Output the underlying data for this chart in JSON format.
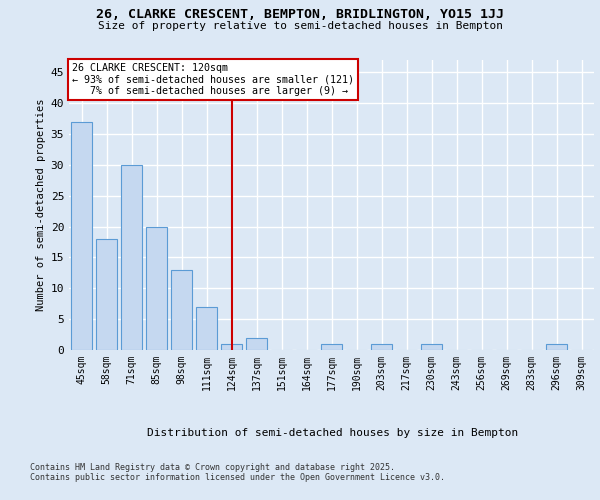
{
  "title1": "26, CLARKE CRESCENT, BEMPTON, BRIDLINGTON, YO15 1JJ",
  "title2": "Size of property relative to semi-detached houses in Bempton",
  "xlabel": "Distribution of semi-detached houses by size in Bempton",
  "ylabel": "Number of semi-detached properties",
  "categories": [
    "45sqm",
    "58sqm",
    "71sqm",
    "85sqm",
    "98sqm",
    "111sqm",
    "124sqm",
    "137sqm",
    "151sqm",
    "164sqm",
    "177sqm",
    "190sqm",
    "203sqm",
    "217sqm",
    "230sqm",
    "243sqm",
    "256sqm",
    "269sqm",
    "283sqm",
    "296sqm",
    "309sqm"
  ],
  "values": [
    37,
    18,
    30,
    20,
    13,
    7,
    1,
    2,
    0,
    0,
    1,
    0,
    1,
    0,
    1,
    0,
    0,
    0,
    0,
    1,
    0
  ],
  "bar_color": "#c5d8f0",
  "bar_edge_color": "#5b9bd5",
  "highlight_index": 6,
  "highlight_line_color": "#cc0000",
  "ylim": [
    0,
    47
  ],
  "yticks": [
    0,
    5,
    10,
    15,
    20,
    25,
    30,
    35,
    40,
    45
  ],
  "annotation_text": "26 CLARKE CRESCENT: 120sqm\n← 93% of semi-detached houses are smaller (121)\n   7% of semi-detached houses are larger (9) →",
  "annotation_box_color": "#ffffff",
  "annotation_box_edge_color": "#cc0000",
  "background_color": "#dce8f5",
  "grid_color": "#ffffff",
  "footnote1": "Contains HM Land Registry data © Crown copyright and database right 2025.",
  "footnote2": "Contains public sector information licensed under the Open Government Licence v3.0."
}
